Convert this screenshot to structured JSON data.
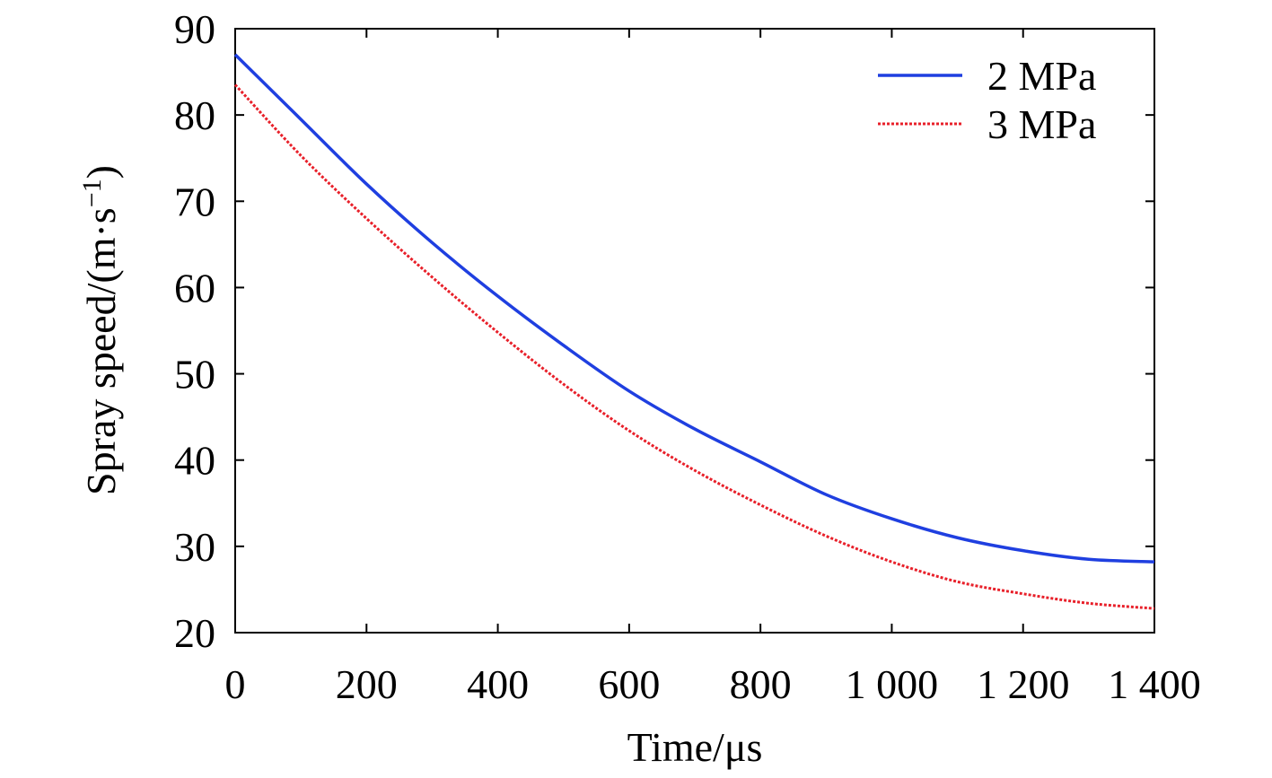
{
  "chart_data": {
    "type": "line",
    "title": "",
    "xlabel": "Time/μs",
    "ylabel": "Spray speed/(m·s",
    "ylabel_sup": "−1",
    "ylabel_close": ")",
    "xlim": [
      0,
      1400
    ],
    "ylim": [
      20,
      90
    ],
    "xticks": [
      0,
      200,
      400,
      600,
      800,
      1000,
      1200,
      1400
    ],
    "xtick_labels": [
      "0",
      "200",
      "400",
      "600",
      "800",
      "1 000",
      "1 200",
      "1 400"
    ],
    "yticks": [
      20,
      30,
      40,
      50,
      60,
      70,
      80,
      90
    ],
    "ytick_labels": [
      "20",
      "30",
      "40",
      "50",
      "60",
      "70",
      "80",
      "90"
    ],
    "grid": false,
    "legend_position": "top-right",
    "x": [
      0,
      100,
      200,
      300,
      400,
      500,
      600,
      700,
      800,
      900,
      1000,
      1100,
      1200,
      1300,
      1400
    ],
    "series": [
      {
        "name": "2 MPa",
        "color": "#1f3fe0",
        "style": "solid",
        "values": [
          87,
          79.5,
          72,
          65.2,
          59,
          53.3,
          48,
          43.6,
          39.8,
          36,
          33.2,
          31,
          29.5,
          28.5,
          28.2
        ]
      },
      {
        "name": "3 MPa",
        "color": "#e8202a",
        "style": "dotted",
        "values": [
          83.5,
          75.3,
          68,
          61.2,
          54.8,
          48.8,
          43.4,
          38.8,
          34.8,
          31.2,
          28.2,
          25.9,
          24.5,
          23.4,
          22.8
        ]
      }
    ]
  }
}
